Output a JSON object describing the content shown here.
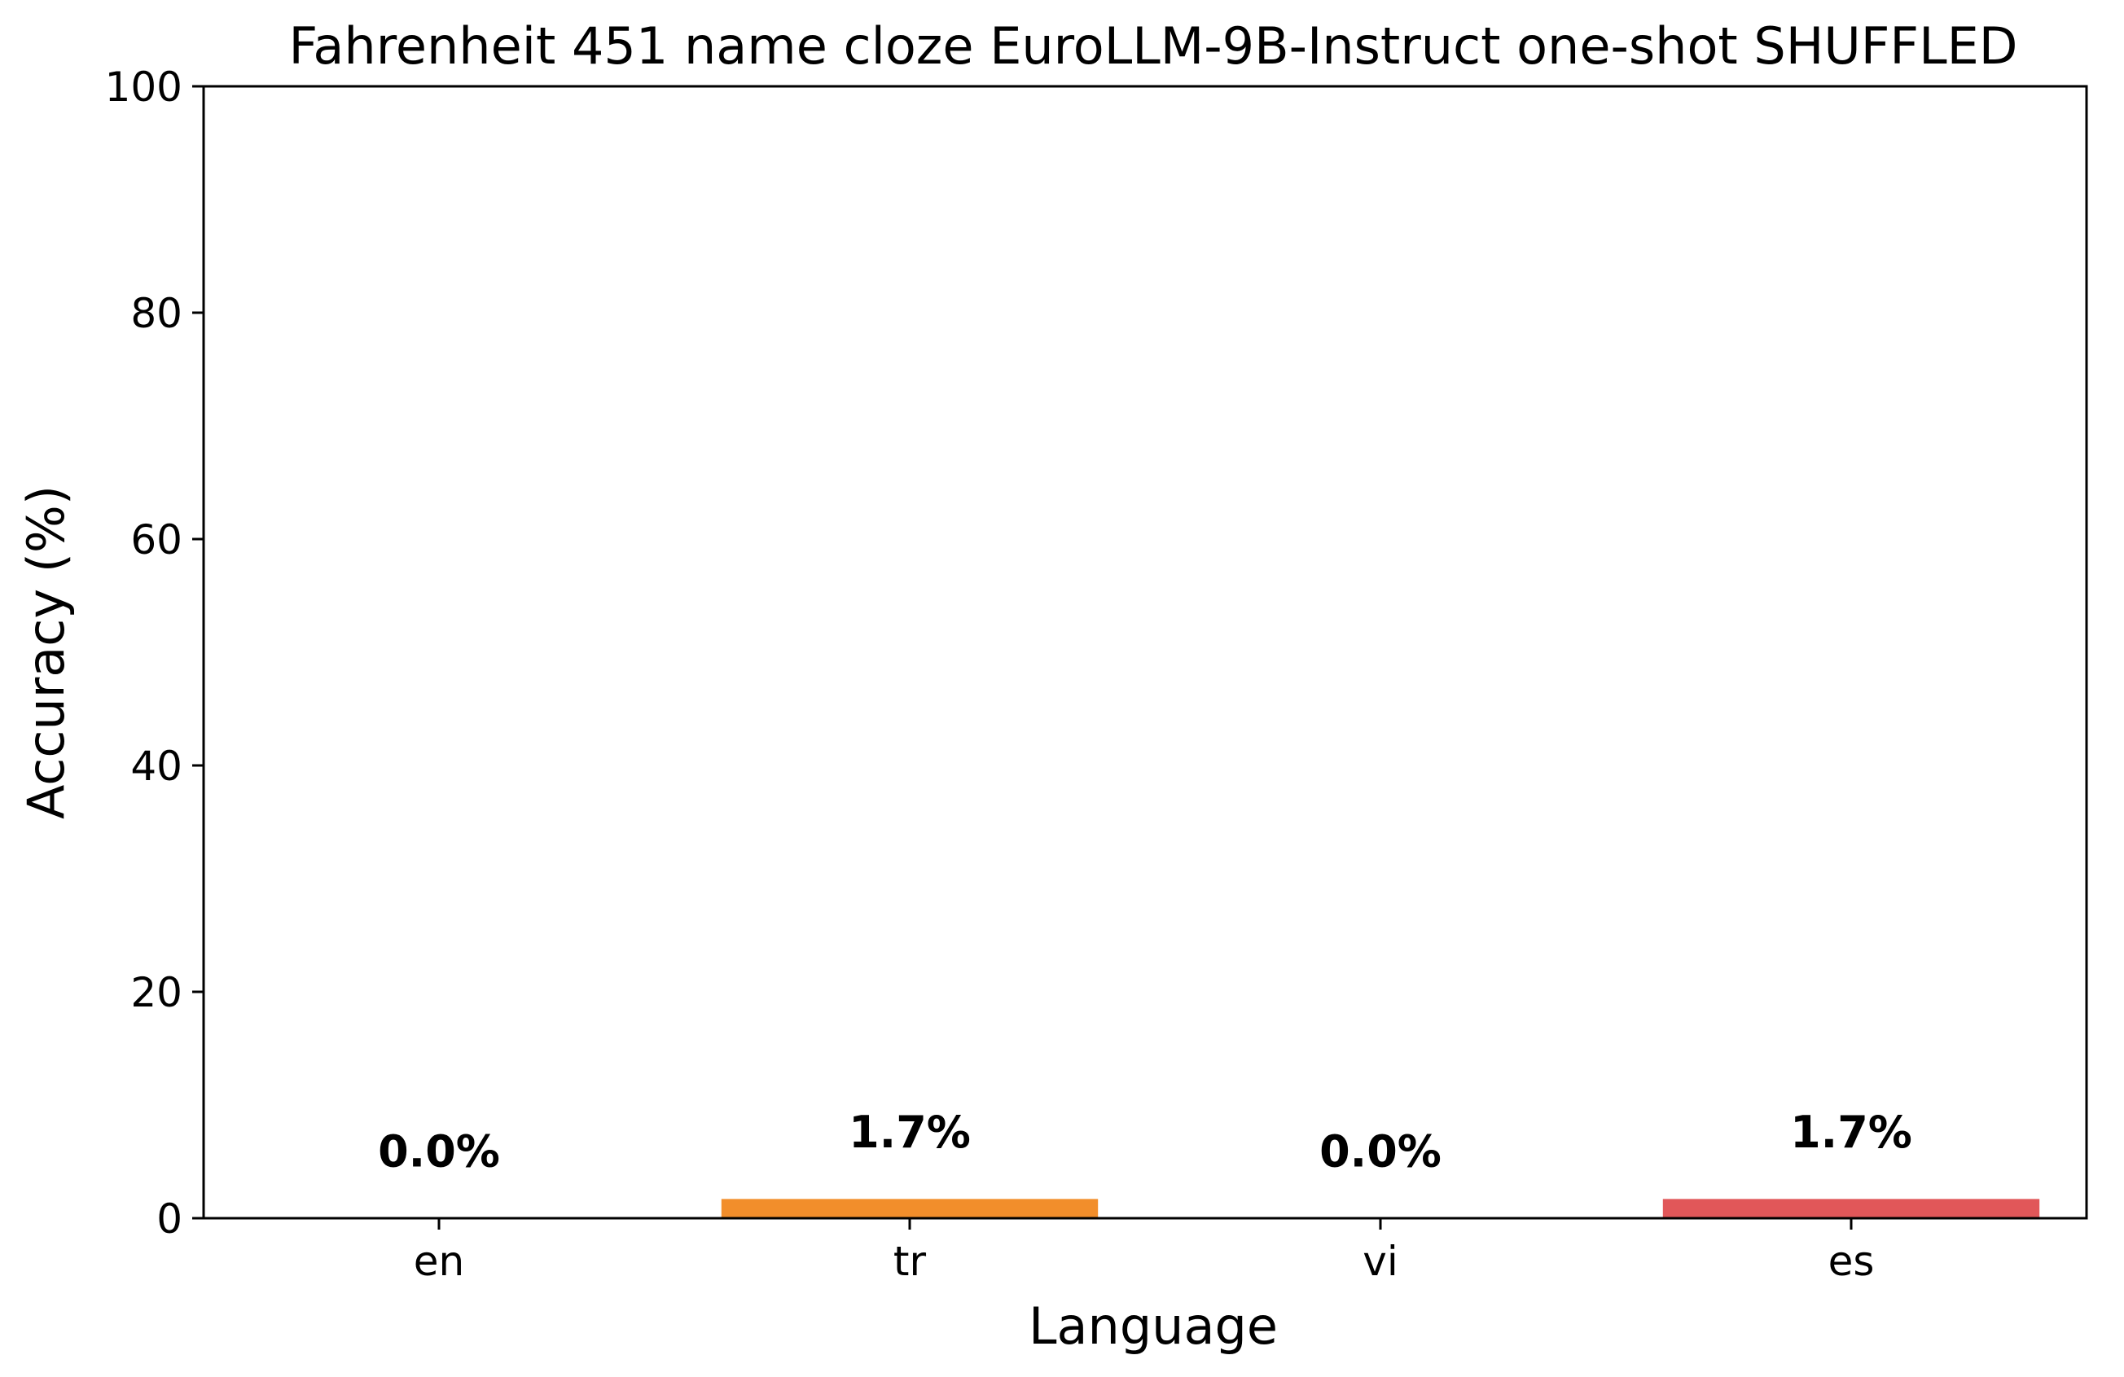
{
  "chart_data": {
    "type": "bar",
    "title": "Fahrenheit 451 name cloze EuroLLM-9B-Instruct one-shot SHUFFLED",
    "xlabel": "Language",
    "ylabel": "Accuracy (%)",
    "categories": [
      "en",
      "tr",
      "vi",
      "es"
    ],
    "values": [
      0.0,
      1.7,
      0.0,
      1.7
    ],
    "value_labels": [
      "0.0%",
      "1.7%",
      "0.0%",
      "1.7%"
    ],
    "colors": [
      "#4c72b0",
      "#f28e2b",
      "#59a14f",
      "#e15759"
    ],
    "ylim": [
      0,
      100
    ],
    "yticks": [
      0,
      20,
      40,
      60,
      80,
      100
    ],
    "grid": false,
    "legend": false
  }
}
